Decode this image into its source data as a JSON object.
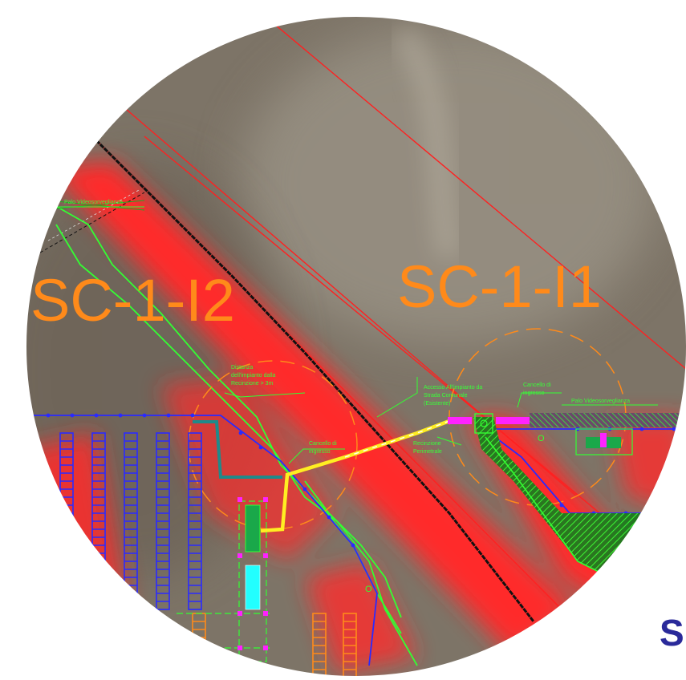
{
  "map": {
    "labels": {
      "plant_left": "SC-1-I2",
      "plant_right": "SC-1-I1"
    },
    "annotations": {
      "camera_pole_left": "Palo Videosorveglianza",
      "camera_pole_right": "Palo Videosorveglianza",
      "distance_line1": "Distanza",
      "distance_line2": "dell'impianto dalla",
      "distance_line3": "Recinzione > 3m",
      "gate_entry_left_line1": "Cancello di",
      "gate_entry_left_line2": "ingresso",
      "access_line1": "Accesso All'impianto da",
      "access_line2": "Strada Comunale",
      "access_line3": "(Esistente)",
      "gate_entry_right_line1": "Cancello di",
      "gate_entry_right_line2": "ingresso",
      "fence_line1": "Recinzione",
      "fence_line2": "Perimetrale"
    },
    "corner_letter": "S",
    "colors": {
      "background": "#7d7467",
      "buffer_zone": "#ff2a2a",
      "boundary_line": "#ff2020",
      "fence": "#2a2aff",
      "vegetation": "#33ff33",
      "access_path": "#ffee22",
      "gate": "#ff22ff",
      "label": "#ff8a1a",
      "road_border": "#000000",
      "cabin": "#22ffff",
      "inverter": "#1aa84a"
    }
  }
}
